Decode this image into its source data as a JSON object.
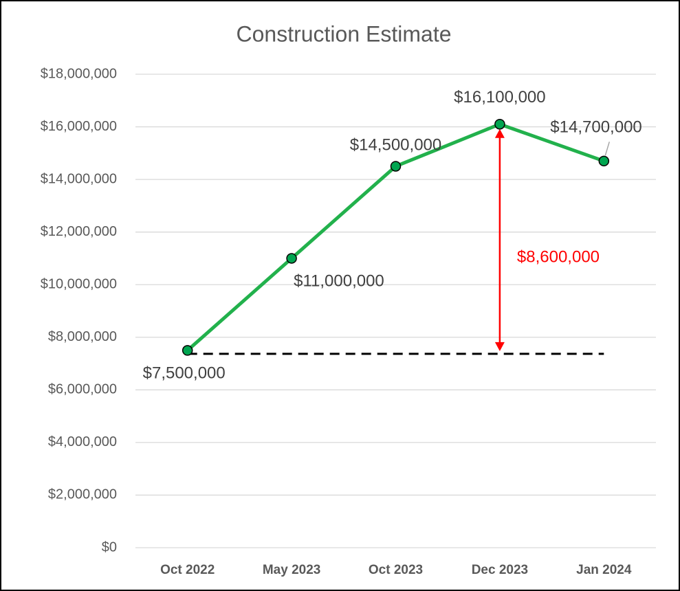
{
  "chart_data": {
    "type": "line",
    "title": "Construction Estimate",
    "categories": [
      "Oct 2022",
      "May 2023",
      "Oct 2023",
      "Dec 2023",
      "Jan 2024"
    ],
    "series": [
      {
        "name": "Construction Estimate",
        "color": "#22b14c",
        "marker_color": "#00a550",
        "values": [
          7500000,
          11000000,
          14500000,
          16100000,
          14700000
        ],
        "value_labels": [
          "$7,500,000",
          "$11,000,000",
          "$14,500,000",
          "$16,100,000",
          "$14,700,000"
        ]
      }
    ],
    "ylim": [
      0,
      18000000
    ],
    "yticks": [
      {
        "value": 0,
        "label": "$0"
      },
      {
        "value": 2000000,
        "label": "$2,000,000"
      },
      {
        "value": 4000000,
        "label": "$4,000,000"
      },
      {
        "value": 6000000,
        "label": "$6,000,000"
      },
      {
        "value": 8000000,
        "label": "$8,000,000"
      },
      {
        "value": 10000000,
        "label": "$10,000,000"
      },
      {
        "value": 12000000,
        "label": "$12,000,000"
      },
      {
        "value": 14000000,
        "label": "$14,000,000"
      },
      {
        "value": 16000000,
        "label": "$16,000,000"
      },
      {
        "value": 18000000,
        "label": "$18,000,000"
      }
    ],
    "grid": true,
    "annotation": {
      "text": "$8,600,000",
      "color": "#ff0000"
    }
  }
}
